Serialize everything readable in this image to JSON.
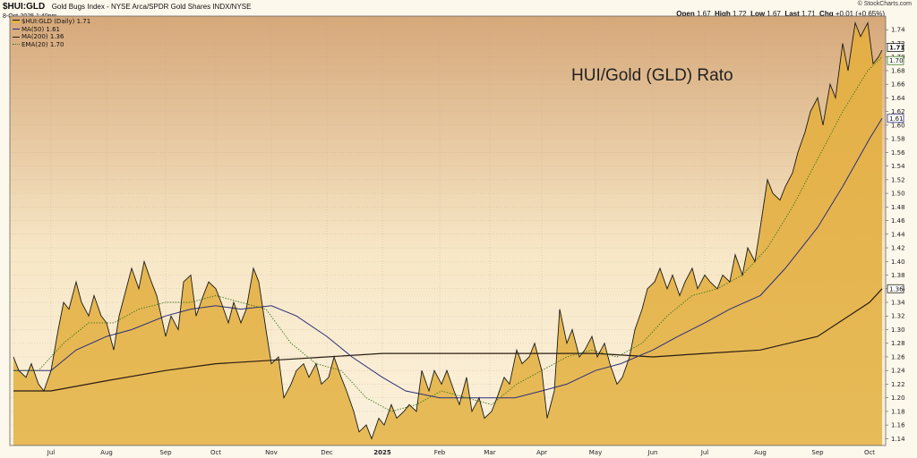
{
  "header": {
    "symbol": "$HUI:GLD",
    "description": "Gold Bugs Index - NYSE Arca/SPDR Gold Shares  INDX/NYSE",
    "datetime": "8-Oct-2025 1:40pm",
    "copyright": "© StockCharts.com",
    "open_label": "Open",
    "open": "1.67",
    "high_label": "High",
    "high": "1.72",
    "low_label": "Low",
    "low": "1.67",
    "last_label": "Last",
    "last": "1.71",
    "chg_label": "Chg",
    "chg": "+0.01 (+0.65%)"
  },
  "legend": {
    "price": "$HUI:GLD (Daily) 1.71",
    "ma50": "MA(50) 1.61",
    "ma200": "MA(200) 1.36",
    "ema20": "EMA(20) 1.70"
  },
  "annotation": "HUI/Gold (GLD) Rato",
  "colors": {
    "price_line": "#1a1a1a",
    "price_fill": "#e2b441",
    "ma50": "#2b2f7a",
    "ma200": "#2a1d12",
    "ema20": "#3f7a1f"
  },
  "chart_data": {
    "type": "area",
    "title": "",
    "xlabel": "",
    "ylabel": "",
    "ylim": [
      1.13,
      1.76
    ],
    "y_ticks": [
      "1.14",
      "1.16",
      "1.18",
      "1.20",
      "1.22",
      "1.24",
      "1.26",
      "1.28",
      "1.30",
      "1.32",
      "1.34",
      "1.36",
      "1.38",
      "1.40",
      "1.42",
      "1.44",
      "1.46",
      "1.48",
      "1.50",
      "1.52",
      "1.54",
      "1.56",
      "1.58",
      "1.60",
      "1.62",
      "1.64",
      "1.66",
      "1.68",
      "1.70",
      "1.72",
      "1.74"
    ],
    "x_ticks": [
      {
        "label": "Jul",
        "date": "2024-07-01"
      },
      {
        "label": "Aug",
        "date": "2024-08-01"
      },
      {
        "label": "Sep",
        "date": "2024-09-03"
      },
      {
        "label": "Oct",
        "date": "2024-10-01"
      },
      {
        "label": "Nov",
        "date": "2024-11-01"
      },
      {
        "label": "Dec",
        "date": "2024-12-02"
      },
      {
        "label": "2025",
        "date": "2025-01-02",
        "bold": true
      },
      {
        "label": "Feb",
        "date": "2025-02-03"
      },
      {
        "label": "Mar",
        "date": "2025-03-03"
      },
      {
        "label": "Apr",
        "date": "2025-04-01"
      },
      {
        "label": "May",
        "date": "2025-05-01"
      },
      {
        "label": "Jun",
        "date": "2025-06-02"
      },
      {
        "label": "Jul",
        "date": "2025-07-01"
      },
      {
        "label": "Aug",
        "date": "2025-08-01"
      },
      {
        "label": "Sep",
        "date": "2025-09-02"
      },
      {
        "label": "Oct",
        "date": "2025-10-01"
      }
    ],
    "x_range": [
      "2024-06-10",
      "2025-10-08"
    ],
    "last_value_labels": [
      {
        "value": 1.71,
        "text": "1.71",
        "series": "price"
      },
      {
        "value": 1.7,
        "text": "1.70",
        "series": "ema20"
      },
      {
        "value": 1.61,
        "text": "1.61",
        "series": "ma50"
      },
      {
        "value": 1.36,
        "text": "1.36",
        "series": "ma200"
      }
    ],
    "series": [
      {
        "name": "$HUI:GLD (Daily)",
        "key": "price",
        "points": [
          [
            "2024-06-10",
            1.26
          ],
          [
            "2024-06-13",
            1.24
          ],
          [
            "2024-06-17",
            1.23
          ],
          [
            "2024-06-20",
            1.25
          ],
          [
            "2024-06-24",
            1.22
          ],
          [
            "2024-06-27",
            1.21
          ],
          [
            "2024-07-01",
            1.24
          ],
          [
            "2024-07-05",
            1.3
          ],
          [
            "2024-07-08",
            1.34
          ],
          [
            "2024-07-11",
            1.33
          ],
          [
            "2024-07-15",
            1.37
          ],
          [
            "2024-07-18",
            1.34
          ],
          [
            "2024-07-22",
            1.32
          ],
          [
            "2024-07-25",
            1.35
          ],
          [
            "2024-07-29",
            1.32
          ],
          [
            "2024-08-01",
            1.31
          ],
          [
            "2024-08-05",
            1.27
          ],
          [
            "2024-08-08",
            1.32
          ],
          [
            "2024-08-12",
            1.36
          ],
          [
            "2024-08-15",
            1.39
          ],
          [
            "2024-08-19",
            1.36
          ],
          [
            "2024-08-22",
            1.4
          ],
          [
            "2024-08-26",
            1.37
          ],
          [
            "2024-08-29",
            1.35
          ],
          [
            "2024-09-03",
            1.29
          ],
          [
            "2024-09-06",
            1.32
          ],
          [
            "2024-09-10",
            1.3
          ],
          [
            "2024-09-13",
            1.37
          ],
          [
            "2024-09-17",
            1.38
          ],
          [
            "2024-09-20",
            1.32
          ],
          [
            "2024-09-24",
            1.35
          ],
          [
            "2024-09-27",
            1.37
          ],
          [
            "2024-10-01",
            1.36
          ],
          [
            "2024-10-04",
            1.34
          ],
          [
            "2024-10-08",
            1.31
          ],
          [
            "2024-10-11",
            1.34
          ],
          [
            "2024-10-15",
            1.31
          ],
          [
            "2024-10-18",
            1.33
          ],
          [
            "2024-10-22",
            1.39
          ],
          [
            "2024-10-25",
            1.37
          ],
          [
            "2024-10-29",
            1.3
          ],
          [
            "2024-11-01",
            1.25
          ],
          [
            "2024-11-05",
            1.26
          ],
          [
            "2024-11-08",
            1.2
          ],
          [
            "2024-11-12",
            1.22
          ],
          [
            "2024-11-15",
            1.24
          ],
          [
            "2024-11-19",
            1.25
          ],
          [
            "2024-11-22",
            1.23
          ],
          [
            "2024-11-26",
            1.25
          ],
          [
            "2024-11-29",
            1.22
          ],
          [
            "2024-12-03",
            1.23
          ],
          [
            "2024-12-06",
            1.26
          ],
          [
            "2024-12-10",
            1.23
          ],
          [
            "2024-12-13",
            1.21
          ],
          [
            "2024-12-17",
            1.18
          ],
          [
            "2024-12-20",
            1.15
          ],
          [
            "2024-12-24",
            1.16
          ],
          [
            "2024-12-27",
            1.14
          ],
          [
            "2024-12-31",
            1.17
          ],
          [
            "2025-01-03",
            1.16
          ],
          [
            "2025-01-07",
            1.19
          ],
          [
            "2025-01-10",
            1.17
          ],
          [
            "2025-01-14",
            1.18
          ],
          [
            "2025-01-17",
            1.19
          ],
          [
            "2025-01-21",
            1.18
          ],
          [
            "2025-01-24",
            1.24
          ],
          [
            "2025-01-28",
            1.21
          ],
          [
            "2025-01-31",
            1.24
          ],
          [
            "2025-02-04",
            1.22
          ],
          [
            "2025-02-07",
            1.24
          ],
          [
            "2025-02-11",
            1.21
          ],
          [
            "2025-02-14",
            1.19
          ],
          [
            "2025-02-18",
            1.23
          ],
          [
            "2025-02-21",
            1.18
          ],
          [
            "2025-02-25",
            1.2
          ],
          [
            "2025-02-28",
            1.17
          ],
          [
            "2025-03-04",
            1.18
          ],
          [
            "2025-03-07",
            1.2
          ],
          [
            "2025-03-11",
            1.23
          ],
          [
            "2025-03-14",
            1.22
          ],
          [
            "2025-03-18",
            1.27
          ],
          [
            "2025-03-21",
            1.25
          ],
          [
            "2025-03-25",
            1.26
          ],
          [
            "2025-03-28",
            1.28
          ],
          [
            "2025-04-01",
            1.24
          ],
          [
            "2025-04-04",
            1.17
          ],
          [
            "2025-04-08",
            1.21
          ],
          [
            "2025-04-11",
            1.33
          ],
          [
            "2025-04-15",
            1.28
          ],
          [
            "2025-04-18",
            1.3
          ],
          [
            "2025-04-22",
            1.26
          ],
          [
            "2025-04-25",
            1.27
          ],
          [
            "2025-04-29",
            1.29
          ],
          [
            "2025-05-02",
            1.26
          ],
          [
            "2025-05-06",
            1.28
          ],
          [
            "2025-05-09",
            1.25
          ],
          [
            "2025-05-13",
            1.22
          ],
          [
            "2025-05-16",
            1.23
          ],
          [
            "2025-05-20",
            1.26
          ],
          [
            "2025-05-23",
            1.3
          ],
          [
            "2025-05-27",
            1.33
          ],
          [
            "2025-05-30",
            1.36
          ],
          [
            "2025-06-03",
            1.37
          ],
          [
            "2025-06-06",
            1.39
          ],
          [
            "2025-06-10",
            1.36
          ],
          [
            "2025-06-13",
            1.38
          ],
          [
            "2025-06-17",
            1.35
          ],
          [
            "2025-06-20",
            1.37
          ],
          [
            "2025-06-24",
            1.39
          ],
          [
            "2025-06-27",
            1.36
          ],
          [
            "2025-07-01",
            1.38
          ],
          [
            "2025-07-04",
            1.37
          ],
          [
            "2025-07-08",
            1.36
          ],
          [
            "2025-07-11",
            1.38
          ],
          [
            "2025-07-15",
            1.37
          ],
          [
            "2025-07-18",
            1.41
          ],
          [
            "2025-07-22",
            1.38
          ],
          [
            "2025-07-25",
            1.42
          ],
          [
            "2025-07-29",
            1.4
          ],
          [
            "2025-08-01",
            1.45
          ],
          [
            "2025-08-05",
            1.52
          ],
          [
            "2025-08-08",
            1.5
          ],
          [
            "2025-08-12",
            1.49
          ],
          [
            "2025-08-15",
            1.51
          ],
          [
            "2025-08-19",
            1.53
          ],
          [
            "2025-08-22",
            1.56
          ],
          [
            "2025-08-26",
            1.59
          ],
          [
            "2025-08-29",
            1.62
          ],
          [
            "2025-09-02",
            1.64
          ],
          [
            "2025-09-05",
            1.6
          ],
          [
            "2025-09-09",
            1.66
          ],
          [
            "2025-09-12",
            1.64
          ],
          [
            "2025-09-16",
            1.72
          ],
          [
            "2025-09-19",
            1.68
          ],
          [
            "2025-09-23",
            1.75
          ],
          [
            "2025-09-26",
            1.73
          ],
          [
            "2025-09-30",
            1.75
          ],
          [
            "2025-10-03",
            1.69
          ],
          [
            "2025-10-06",
            1.7
          ],
          [
            "2025-10-08",
            1.71
          ]
        ]
      },
      {
        "name": "EMA(20)",
        "key": "ema20",
        "points": [
          [
            "2024-06-10",
            1.24
          ],
          [
            "2024-06-24",
            1.24
          ],
          [
            "2024-07-08",
            1.28
          ],
          [
            "2024-07-22",
            1.31
          ],
          [
            "2024-08-05",
            1.31
          ],
          [
            "2024-08-19",
            1.33
          ],
          [
            "2024-09-03",
            1.34
          ],
          [
            "2024-09-17",
            1.34
          ],
          [
            "2024-10-01",
            1.35
          ],
          [
            "2024-10-15",
            1.34
          ],
          [
            "2024-10-29",
            1.33
          ],
          [
            "2024-11-12",
            1.28
          ],
          [
            "2024-11-26",
            1.25
          ],
          [
            "2024-12-10",
            1.24
          ],
          [
            "2024-12-24",
            1.2
          ],
          [
            "2025-01-07",
            1.18
          ],
          [
            "2025-01-21",
            1.19
          ],
          [
            "2025-02-04",
            1.21
          ],
          [
            "2025-02-18",
            1.2
          ],
          [
            "2025-03-04",
            1.19
          ],
          [
            "2025-03-18",
            1.22
          ],
          [
            "2025-04-01",
            1.24
          ],
          [
            "2025-04-15",
            1.26
          ],
          [
            "2025-04-29",
            1.27
          ],
          [
            "2025-05-13",
            1.26
          ],
          [
            "2025-05-27",
            1.28
          ],
          [
            "2025-06-10",
            1.32
          ],
          [
            "2025-06-24",
            1.35
          ],
          [
            "2025-07-08",
            1.36
          ],
          [
            "2025-07-22",
            1.38
          ],
          [
            "2025-08-05",
            1.42
          ],
          [
            "2025-08-19",
            1.48
          ],
          [
            "2025-09-02",
            1.55
          ],
          [
            "2025-09-16",
            1.62
          ],
          [
            "2025-09-30",
            1.68
          ],
          [
            "2025-10-08",
            1.7
          ]
        ]
      },
      {
        "name": "MA(50)",
        "key": "ma50",
        "points": [
          [
            "2024-06-10",
            1.24
          ],
          [
            "2024-07-01",
            1.24
          ],
          [
            "2024-07-15",
            1.27
          ],
          [
            "2024-08-01",
            1.29
          ],
          [
            "2024-08-15",
            1.3
          ],
          [
            "2024-09-03",
            1.32
          ],
          [
            "2024-09-17",
            1.33
          ],
          [
            "2024-10-01",
            1.335
          ],
          [
            "2024-10-15",
            1.33
          ],
          [
            "2024-11-01",
            1.335
          ],
          [
            "2024-11-15",
            1.32
          ],
          [
            "2024-12-02",
            1.29
          ],
          [
            "2024-12-16",
            1.26
          ],
          [
            "2025-01-02",
            1.23
          ],
          [
            "2025-01-15",
            1.21
          ],
          [
            "2025-02-03",
            1.2
          ],
          [
            "2025-02-17",
            1.2
          ],
          [
            "2025-03-03",
            1.2
          ],
          [
            "2025-03-17",
            1.2
          ],
          [
            "2025-04-01",
            1.21
          ],
          [
            "2025-04-15",
            1.22
          ],
          [
            "2025-05-01",
            1.24
          ],
          [
            "2025-05-15",
            1.25
          ],
          [
            "2025-06-02",
            1.27
          ],
          [
            "2025-06-16",
            1.29
          ],
          [
            "2025-07-01",
            1.31
          ],
          [
            "2025-07-15",
            1.33
          ],
          [
            "2025-08-01",
            1.35
          ],
          [
            "2025-08-15",
            1.39
          ],
          [
            "2025-09-02",
            1.45
          ],
          [
            "2025-09-16",
            1.51
          ],
          [
            "2025-10-01",
            1.58
          ],
          [
            "2025-10-08",
            1.61
          ]
        ]
      },
      {
        "name": "MA(200)",
        "key": "ma200",
        "points": [
          [
            "2024-06-10",
            1.21
          ],
          [
            "2024-07-01",
            1.21
          ],
          [
            "2024-08-01",
            1.225
          ],
          [
            "2024-09-03",
            1.24
          ],
          [
            "2024-10-01",
            1.25
          ],
          [
            "2024-11-01",
            1.255
          ],
          [
            "2024-12-02",
            1.26
          ],
          [
            "2025-01-02",
            1.265
          ],
          [
            "2025-02-03",
            1.265
          ],
          [
            "2025-03-03",
            1.265
          ],
          [
            "2025-04-01",
            1.265
          ],
          [
            "2025-05-01",
            1.265
          ],
          [
            "2025-06-02",
            1.26
          ],
          [
            "2025-07-01",
            1.265
          ],
          [
            "2025-08-01",
            1.27
          ],
          [
            "2025-09-02",
            1.29
          ],
          [
            "2025-10-01",
            1.34
          ],
          [
            "2025-10-08",
            1.36
          ]
        ]
      }
    ]
  }
}
